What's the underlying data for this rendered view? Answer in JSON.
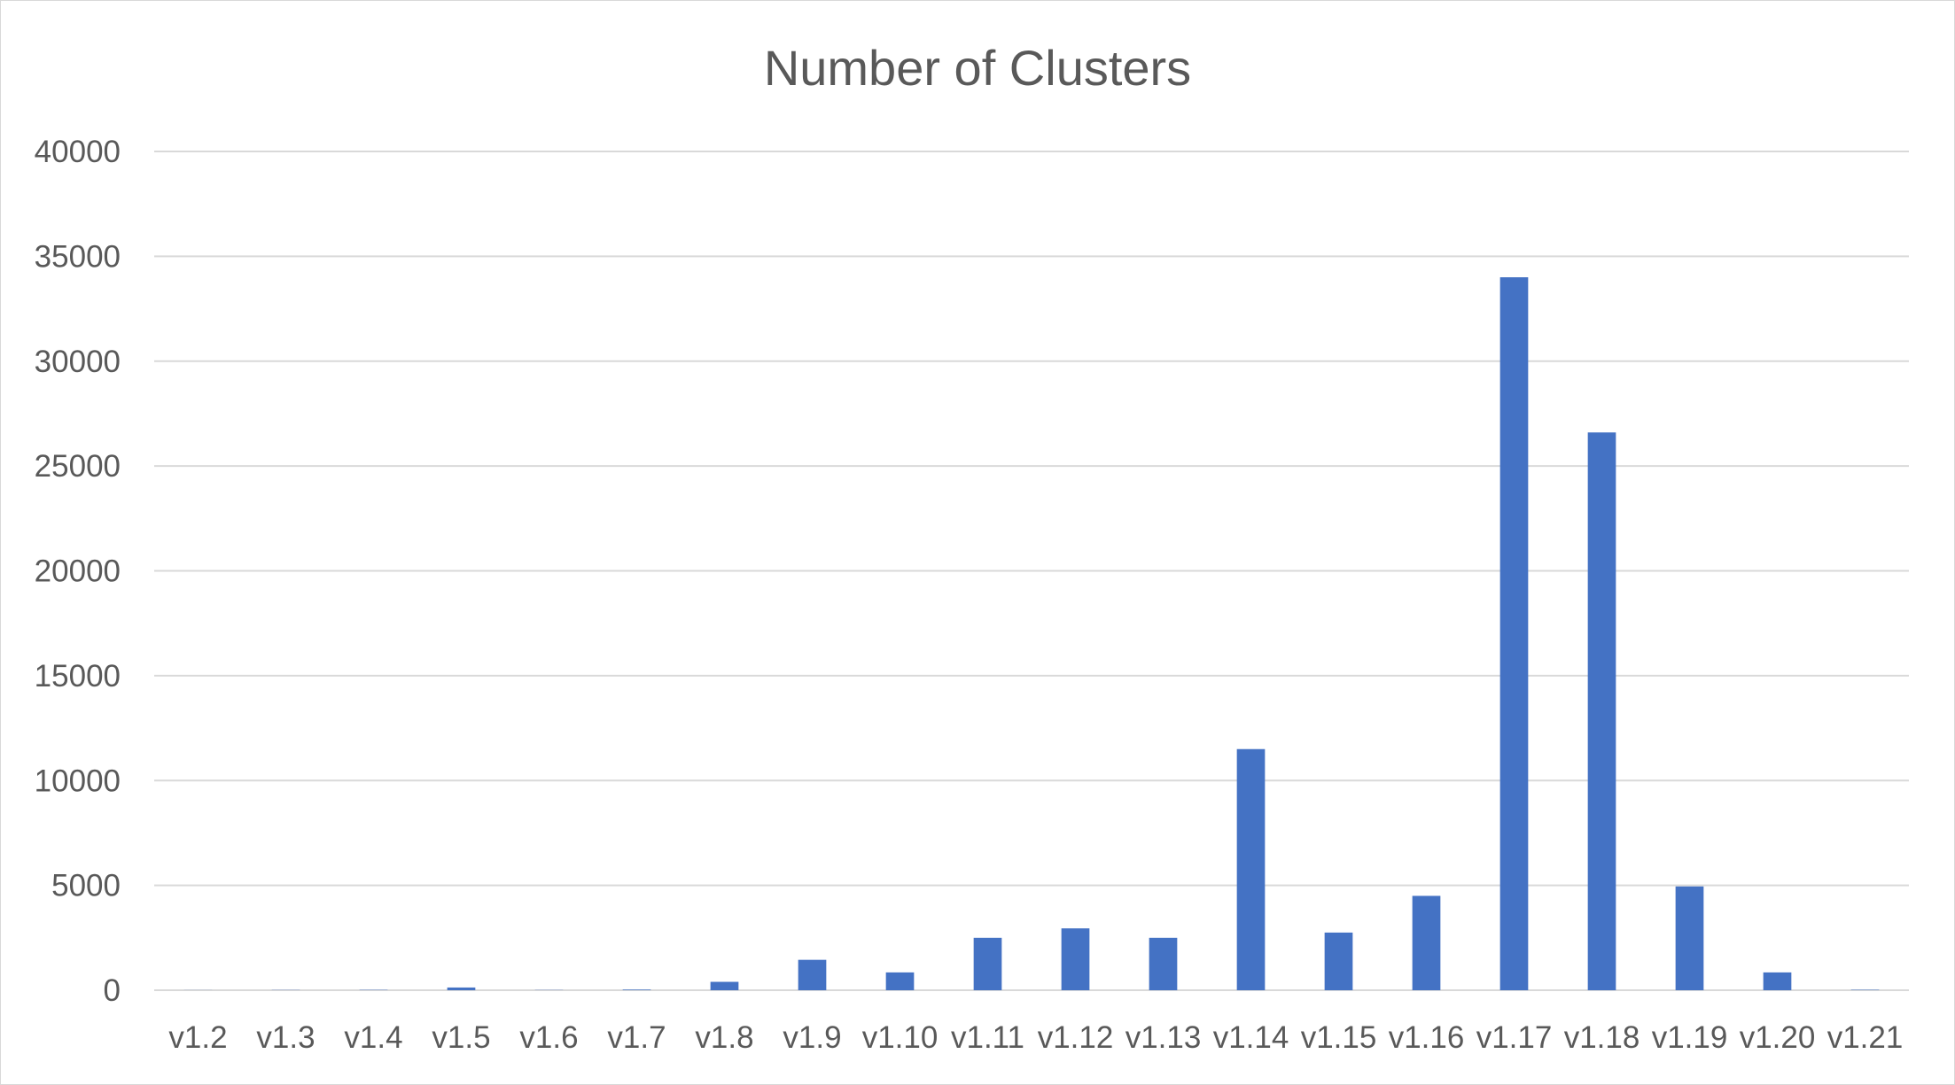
{
  "chart_data": {
    "type": "bar",
    "title": "Number of Clusters",
    "xlabel": "",
    "ylabel": "",
    "categories": [
      "v1.2",
      "v1.3",
      "v1.4",
      "v1.5",
      "v1.6",
      "v1.7",
      "v1.8",
      "v1.9",
      "v1.10",
      "v1.11",
      "v1.12",
      "v1.13",
      "v1.14",
      "v1.15",
      "v1.16",
      "v1.17",
      "v1.18",
      "v1.19",
      "v1.20",
      "v1.21"
    ],
    "values": [
      5,
      10,
      15,
      130,
      10,
      30,
      400,
      1450,
      850,
      2500,
      2950,
      2500,
      11500,
      2750,
      4500,
      34000,
      26600,
      4950,
      850,
      20
    ],
    "ylim": [
      0,
      40000
    ],
    "yticks": [
      0,
      5000,
      10000,
      15000,
      20000,
      25000,
      30000,
      35000,
      40000
    ],
    "grid": true,
    "legend": "none",
    "bar_color": "#4472c4",
    "grid_color": "#d9d9d9"
  }
}
